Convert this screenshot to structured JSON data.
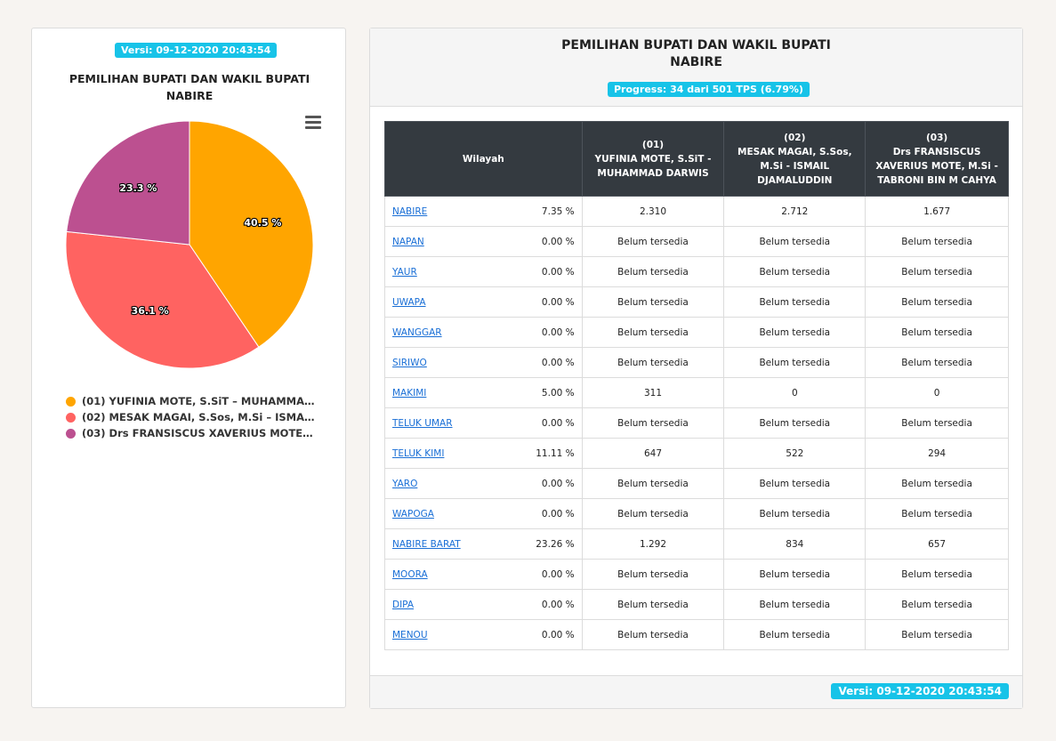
{
  "left": {
    "version_badge": "Versi: 09-12-2020 20:43:54",
    "title_line1": "PEMILIHAN BUPATI DAN WAKIL BUPATI",
    "title_line2": "NABIRE",
    "menu_icon": "hamburger-menu-icon"
  },
  "chart_data": {
    "type": "pie",
    "slices": [
      {
        "label": "(01) YUFINIA MOTE, S.SiT – MUHAMMAD ...",
        "value": 40.5,
        "display": "40.5 %",
        "color": "#ffa500"
      },
      {
        "label": "(02) MESAK MAGAI, S.Sos, M.Si – ISMAIL ...",
        "value": 36.1,
        "display": "36.1 %",
        "color": "#ff6361"
      },
      {
        "label": "(03) Drs FRANSISCUS XAVERIUS MOTE, M....",
        "value": 23.3,
        "display": "23.3 %",
        "color": "#bc5090"
      }
    ],
    "legend": "bottom"
  },
  "right": {
    "title_line1": "PEMILIHAN BUPATI DAN WAKIL BUPATI",
    "title_line2": "NABIRE",
    "progress_badge": "Progress: 34 dari 501 TPS (6.79%)",
    "footer_badge": "Versi: 09-12-2020 20:43:54",
    "headers": {
      "wilayah": "Wilayah",
      "c1_num": "(01)",
      "c1_l1": "YUFINIA MOTE, S.SiT -",
      "c1_l2": "MUHAMMAD DARWIS",
      "c2_num": "(02)",
      "c2_l1": "MESAK MAGAI, S.Sos,",
      "c2_l2": "M.Si - ISMAIL",
      "c2_l3": "DJAMALUDDIN",
      "c3_num": "(03)",
      "c3_l1": "Drs FRANSISCUS",
      "c3_l2": "XAVERIUS MOTE, M.Si -",
      "c3_l3": "TABRONI BIN M CAHYA"
    },
    "rows": [
      {
        "name": "NABIRE",
        "pct": "7.35 %",
        "v1": "2.310",
        "v2": "2.712",
        "v3": "1.677"
      },
      {
        "name": "NAPAN",
        "pct": "0.00 %",
        "v1": "Belum tersedia",
        "v2": "Belum tersedia",
        "v3": "Belum tersedia"
      },
      {
        "name": "YAUR",
        "pct": "0.00 %",
        "v1": "Belum tersedia",
        "v2": "Belum tersedia",
        "v3": "Belum tersedia"
      },
      {
        "name": "UWAPA",
        "pct": "0.00 %",
        "v1": "Belum tersedia",
        "v2": "Belum tersedia",
        "v3": "Belum tersedia"
      },
      {
        "name": "WANGGAR",
        "pct": "0.00 %",
        "v1": "Belum tersedia",
        "v2": "Belum tersedia",
        "v3": "Belum tersedia"
      },
      {
        "name": "SIRIWO",
        "pct": "0.00 %",
        "v1": "Belum tersedia",
        "v2": "Belum tersedia",
        "v3": "Belum tersedia"
      },
      {
        "name": "MAKIMI",
        "pct": "5.00 %",
        "v1": "311",
        "v2": "0",
        "v3": "0"
      },
      {
        "name": "TELUK UMAR",
        "pct": "0.00 %",
        "v1": "Belum tersedia",
        "v2": "Belum tersedia",
        "v3": "Belum tersedia"
      },
      {
        "name": "TELUK KIMI",
        "pct": "11.11 %",
        "v1": "647",
        "v2": "522",
        "v3": "294"
      },
      {
        "name": "YARO",
        "pct": "0.00 %",
        "v1": "Belum tersedia",
        "v2": "Belum tersedia",
        "v3": "Belum tersedia"
      },
      {
        "name": "WAPOGA",
        "pct": "0.00 %",
        "v1": "Belum tersedia",
        "v2": "Belum tersedia",
        "v3": "Belum tersedia"
      },
      {
        "name": "NABIRE BARAT",
        "pct": "23.26 %",
        "v1": "1.292",
        "v2": "834",
        "v3": "657"
      },
      {
        "name": "MOORA",
        "pct": "0.00 %",
        "v1": "Belum tersedia",
        "v2": "Belum tersedia",
        "v3": "Belum tersedia"
      },
      {
        "name": "DIPA",
        "pct": "0.00 %",
        "v1": "Belum tersedia",
        "v2": "Belum tersedia",
        "v3": "Belum tersedia"
      },
      {
        "name": "MENOU",
        "pct": "0.00 %",
        "v1": "Belum tersedia",
        "v2": "Belum tersedia",
        "v3": "Belum tersedia"
      }
    ]
  }
}
